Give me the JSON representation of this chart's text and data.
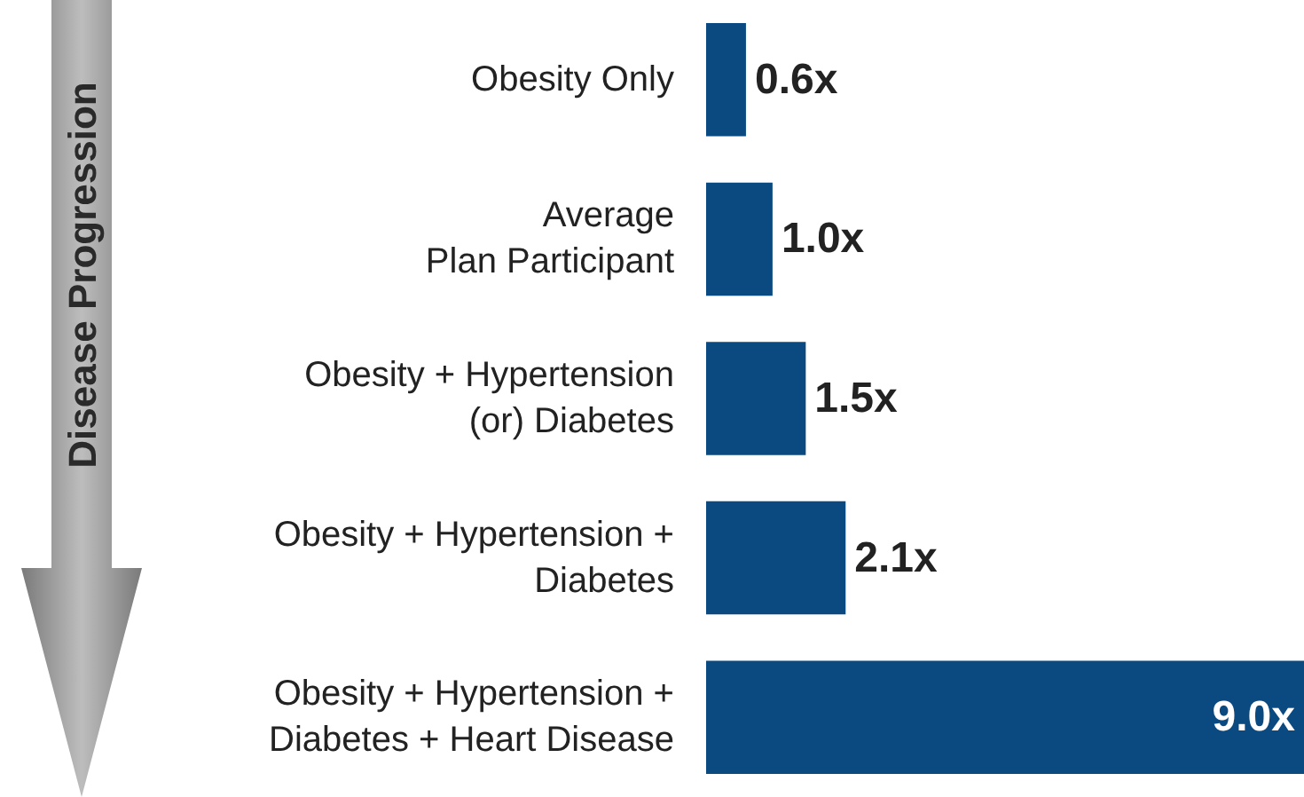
{
  "chart_data": {
    "type": "bar",
    "orientation": "horizontal",
    "categories": [
      "Obesity Only",
      "Average\nPlan Participant",
      "Obesity + Hypertension\n(or) Diabetes",
      "Obesity + Hypertension +\nDiabetes",
      "Obesity + Hypertension +\nDiabetes + Heart Disease"
    ],
    "values": [
      0.6,
      1.0,
      1.5,
      2.1,
      9.0
    ],
    "value_labels": [
      "0.6x",
      "1.0x",
      "1.5x",
      "2.1x",
      "9.0x"
    ],
    "color": "#0b4a80",
    "annotations": [
      "Disease Progression"
    ]
  }
}
